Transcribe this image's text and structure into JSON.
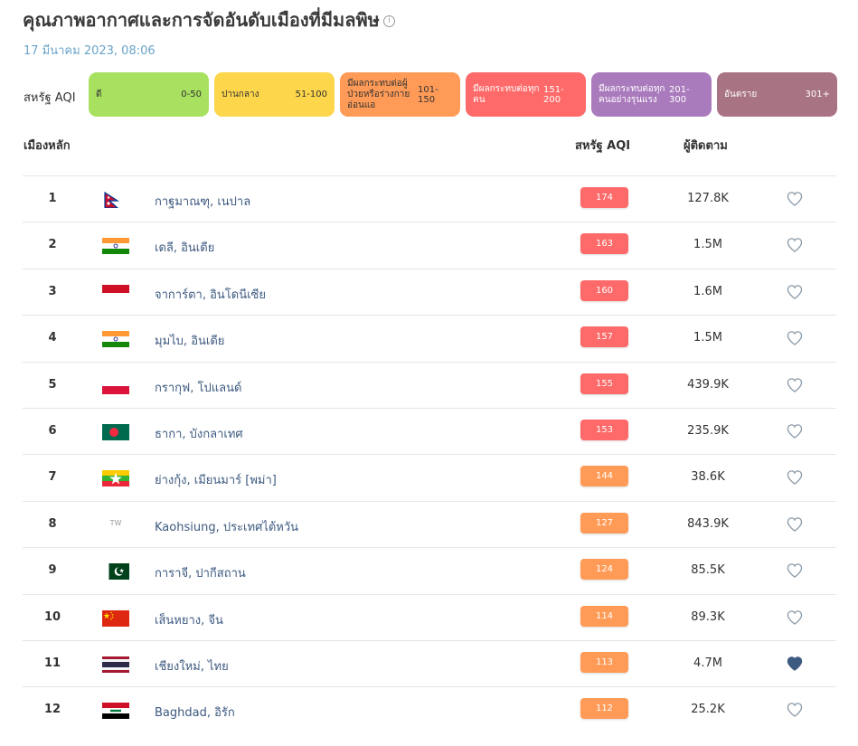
{
  "page": {
    "title": "คุณภาพอากาศและการจัดอันดับเมืองที่มีมลพิษ",
    "info_icon": "i",
    "timestamp": "17 มีนาคม 2023, 08:06"
  },
  "legend": {
    "label": "สหรัฐ AQI",
    "items": [
      {
        "name": "ดี",
        "range": "0-50",
        "color": "#a8e05f",
        "text_color": "#333333"
      },
      {
        "name": "ปานกลาง",
        "range": "51-100",
        "color": "#fdd64b",
        "text_color": "#333333"
      },
      {
        "name": "มีผลกระทบต่อผู้ป่วยหรือร่างกายอ่อนแอ",
        "range": "101-150",
        "color": "#ff9b57",
        "text_color": "#333333"
      },
      {
        "name": "มีผลกระทบต่อทุกคน",
        "range": "151-200",
        "color": "#fe6a69",
        "text_color": "#ffffff"
      },
      {
        "name": "มีผลกระทบต่อทุกคนอย่างรุนแรง",
        "range": "201-300",
        "color": "#a97abc",
        "text_color": "#ffffff"
      },
      {
        "name": "อันตราย",
        "range": "301+",
        "color": "#a87383",
        "text_color": "#ffffff"
      }
    ]
  },
  "table": {
    "headers": {
      "city": "เมืองหลัก",
      "aqi": "สหรัฐ AQI",
      "followers": "ผู้ติดตาม"
    },
    "rows": [
      {
        "rank": "1",
        "flag": "np",
        "city": "กาฐมาณฑุ, เนปาล",
        "aqi": "174",
        "aqi_color": "#fe6a69",
        "followers": "127.8K",
        "favorite": false
      },
      {
        "rank": "2",
        "flag": "in",
        "city": "เดลี, อินเดีย",
        "aqi": "163",
        "aqi_color": "#fe6a69",
        "followers": "1.5M",
        "favorite": false
      },
      {
        "rank": "3",
        "flag": "id",
        "city": "จาการ์ตา, อินโดนีเซีย",
        "aqi": "160",
        "aqi_color": "#fe6a69",
        "followers": "1.6M",
        "favorite": false
      },
      {
        "rank": "4",
        "flag": "in",
        "city": "มุมไบ, อินเดีย",
        "aqi": "157",
        "aqi_color": "#fe6a69",
        "followers": "1.5M",
        "favorite": false
      },
      {
        "rank": "5",
        "flag": "pl",
        "city": "กรากุฟ, โปแลนด์",
        "aqi": "155",
        "aqi_color": "#fe6a69",
        "followers": "439.9K",
        "favorite": false
      },
      {
        "rank": "6",
        "flag": "bd",
        "city": "ธากา, บังกลาเทศ",
        "aqi": "153",
        "aqi_color": "#fe6a69",
        "followers": "235.9K",
        "favorite": false
      },
      {
        "rank": "7",
        "flag": "mm",
        "city": "ย่างกุ้ง, เมียนมาร์ [พม่า]",
        "aqi": "144",
        "aqi_color": "#ff9b57",
        "followers": "38.6K",
        "favorite": false
      },
      {
        "rank": "8",
        "flag": "tw",
        "flag_text": "TW",
        "city": "Kaohsiung, ประเทศไต้หวัน",
        "aqi": "127",
        "aqi_color": "#ff9b57",
        "followers": "843.9K",
        "favorite": false
      },
      {
        "rank": "9",
        "flag": "pk",
        "city": "การาจี, ปากีสถาน",
        "aqi": "124",
        "aqi_color": "#ff9b57",
        "followers": "85.5K",
        "favorite": false
      },
      {
        "rank": "10",
        "flag": "cn",
        "city": "เส็นหยาง, จีน",
        "aqi": "114",
        "aqi_color": "#ff9b57",
        "followers": "89.3K",
        "favorite": false
      },
      {
        "rank": "11",
        "flag": "th",
        "city": "เชียงใหม่, ไทย",
        "aqi": "113",
        "aqi_color": "#ff9b57",
        "followers": "4.7M",
        "favorite": true
      },
      {
        "rank": "12",
        "flag": "iq",
        "city": "Baghdad, อิรัก",
        "aqi": "112",
        "aqi_color": "#ff9b57",
        "followers": "25.2K",
        "favorite": false
      }
    ]
  },
  "colors": {
    "heart_outline": "#8a9aa8",
    "heart_filled": "#3d5a80",
    "city_link": "#3d5a80"
  }
}
